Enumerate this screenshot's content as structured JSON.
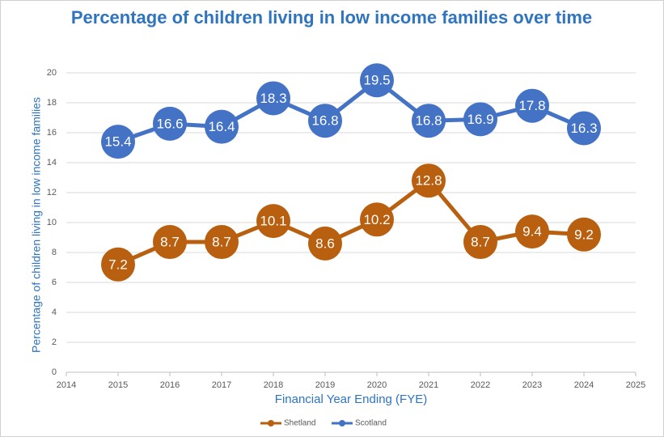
{
  "chart_data": {
    "type": "line",
    "title": "Percentage of children living in low income families over time",
    "x_label": "Financial Year Ending (FYE)",
    "y_label": "Percentage of children living in low income families",
    "x": [
      2015,
      2016,
      2017,
      2018,
      2019,
      2020,
      2021,
      2022,
      2023,
      2024
    ],
    "series": [
      {
        "name": "Shetland",
        "color": "#b8600f",
        "values": [
          7.2,
          8.7,
          8.7,
          10.1,
          8.6,
          10.2,
          12.8,
          8.7,
          9.4,
          9.2
        ]
      },
      {
        "name": "Scotland",
        "color": "#4472c4",
        "values": [
          15.4,
          16.6,
          16.4,
          18.3,
          16.8,
          19.5,
          16.8,
          16.9,
          17.8,
          16.3
        ]
      }
    ],
    "xlim": [
      2014,
      2025
    ],
    "xticks": [
      2014,
      2015,
      2016,
      2017,
      2018,
      2019,
      2020,
      2021,
      2022,
      2023,
      2024,
      2025
    ],
    "ylim": [
      0,
      20
    ],
    "yticks": [
      0,
      2,
      4,
      6,
      8,
      10,
      12,
      14,
      16,
      18,
      20
    ],
    "grid": true,
    "legend": "bottom"
  }
}
